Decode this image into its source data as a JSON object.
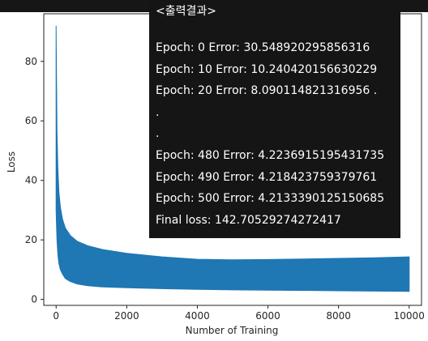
{
  "chart_data": {
    "type": "area",
    "xlabel": "Number of Training",
    "ylabel": "Loss",
    "xlim": [
      -350,
      10350
    ],
    "ylim": [
      -2,
      96
    ],
    "xticks": [
      0,
      2000,
      4000,
      6000,
      8000,
      10000
    ],
    "yticks": [
      0,
      20,
      40,
      60,
      80
    ],
    "grid": false,
    "series": [
      {
        "color": "#1f77b4",
        "upper": [
          [
            0,
            92
          ],
          [
            10,
            75
          ],
          [
            25,
            57
          ],
          [
            50,
            44
          ],
          [
            80,
            36
          ],
          [
            120,
            31
          ],
          [
            180,
            27
          ],
          [
            260,
            24
          ],
          [
            400,
            21.5
          ],
          [
            600,
            19.5
          ],
          [
            900,
            18
          ],
          [
            1300,
            16.8
          ],
          [
            2000,
            15.5
          ],
          [
            3000,
            14.3
          ],
          [
            4000,
            13.5
          ],
          [
            5000,
            13.3
          ],
          [
            6000,
            13.4
          ],
          [
            7000,
            13.6
          ],
          [
            8000,
            13.8
          ],
          [
            9000,
            14.0
          ],
          [
            10000,
            14.3
          ]
        ],
        "lower": [
          [
            0,
            30
          ],
          [
            10,
            25
          ],
          [
            25,
            20
          ],
          [
            50,
            15
          ],
          [
            80,
            12
          ],
          [
            120,
            10
          ],
          [
            180,
            8.5
          ],
          [
            260,
            7
          ],
          [
            400,
            6
          ],
          [
            600,
            5.2
          ],
          [
            900,
            4.6
          ],
          [
            1300,
            4.2
          ],
          [
            2000,
            3.9
          ],
          [
            3000,
            3.6
          ],
          [
            4000,
            3.4
          ],
          [
            5000,
            3.2
          ],
          [
            6000,
            3.1
          ],
          [
            7000,
            3.0
          ],
          [
            8000,
            2.9
          ],
          [
            9000,
            2.8
          ],
          [
            10000,
            2.7
          ]
        ]
      }
    ]
  },
  "output": {
    "title": "<출력결과>",
    "lines": [
      "Epoch: 0 Error: 30.548920295856316",
      "Epoch: 10 Error: 10.240420156630229",
      "Epoch: 20 Error: 8.090114821316956 .",
      ".",
      ".",
      "Epoch: 480 Error: 4.2236915195431735",
      "Epoch: 490 Error: 4.218423759379761",
      "Epoch: 500 Error: 4.2133390125150685",
      "Final loss: 142.70529274272417"
    ]
  }
}
